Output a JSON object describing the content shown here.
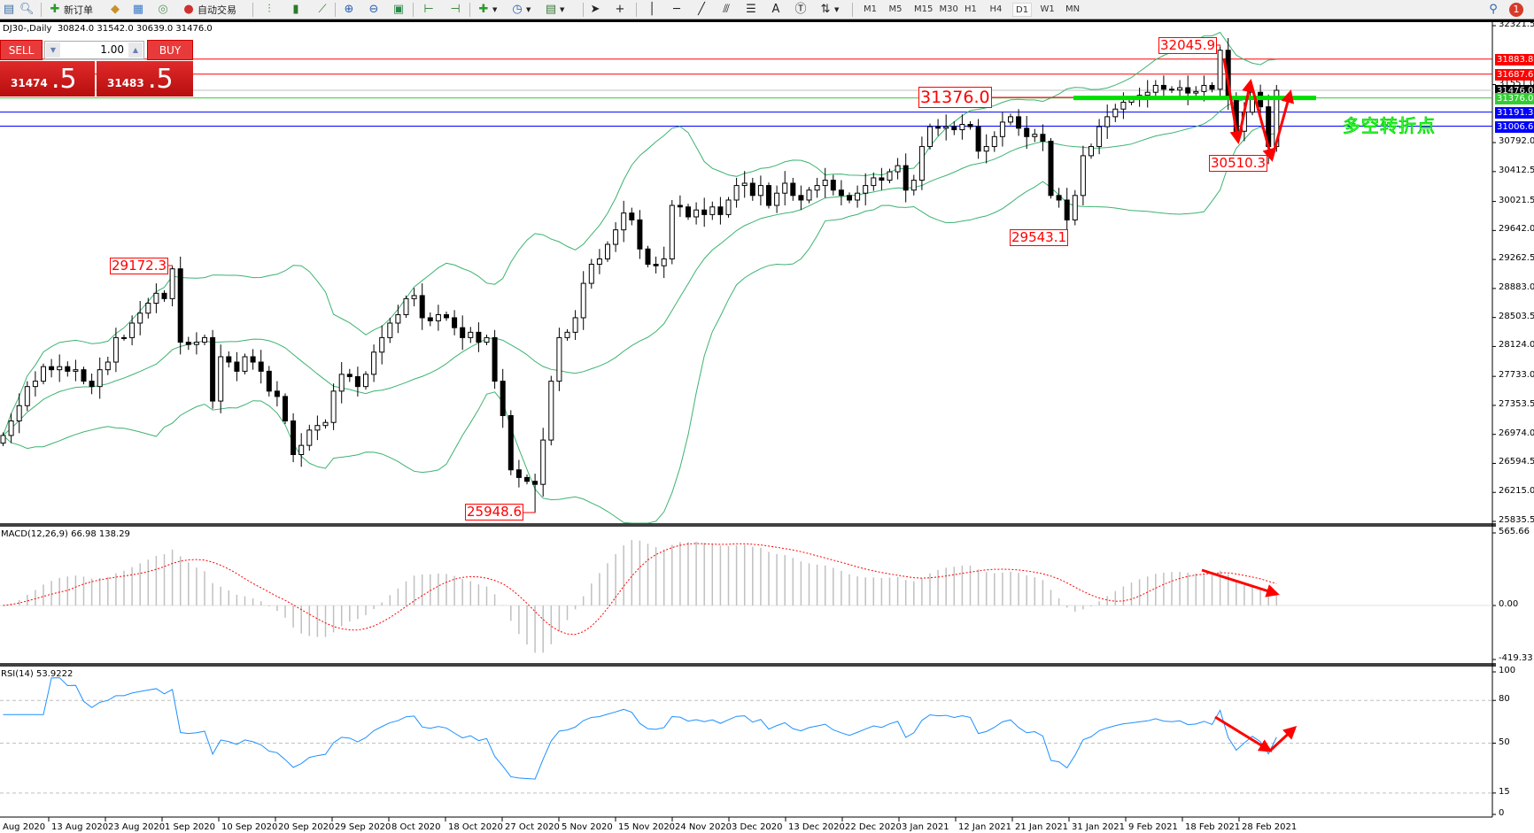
{
  "toolbar": {
    "new_order": "新订单",
    "auto_trading": "自动交易",
    "timeframes": [
      "M1",
      "M5",
      "M15",
      "M30",
      "H1",
      "H4",
      "D1",
      "W1",
      "MN"
    ],
    "active_timeframe": "D1",
    "notification_count": "1"
  },
  "chart": {
    "header": "DJ30-,Daily  30824.0 31542.0 30639.0 31476.0",
    "note_text": "多空转折点"
  },
  "trade_panel": {
    "sell": "SELL",
    "buy": "BUY",
    "lot": "1.00",
    "bid_main": "31474",
    "bid_frac": ".5",
    "ask_main": "31483",
    "ask_frac": ".5"
  },
  "price_axis": {
    "ticks": [
      "32321.5",
      "31551.0",
      "30792.0",
      "30412.5",
      "30021.5",
      "29642.0",
      "29262.5",
      "28883.0",
      "28503.5",
      "28124.0",
      "27733.0",
      "27353.5",
      "26974.0",
      "26594.5",
      "26215.0",
      "25835.5"
    ],
    "range": [
      25835.5,
      32321.5
    ]
  },
  "price_lines": [
    {
      "value": "31883.8",
      "color": "#ff0000"
    },
    {
      "value": "31687.6",
      "color": "#ff0000"
    },
    {
      "value": "31476.0",
      "color": "#000000",
      "line_color": "#c0c0c0"
    },
    {
      "value": "31376.0",
      "color": "#33cc33"
    },
    {
      "value": "31191.3",
      "color": "#0000ff"
    },
    {
      "value": "31006.6",
      "color": "#0000ff"
    }
  ],
  "annotations": [
    {
      "text": "29172.3",
      "bar": 21,
      "kind": "high"
    },
    {
      "text": "25948.6",
      "bar": 66,
      "kind": "low"
    },
    {
      "text": "31376.0",
      "kind": "level"
    },
    {
      "text": "29543.1",
      "bar": 132,
      "kind": "low"
    },
    {
      "text": "32045.9",
      "bar": 151,
      "kind": "high"
    },
    {
      "text": "30510.3",
      "bar": 157,
      "kind": "low"
    }
  ],
  "macd": {
    "label": "MACD(12,26,9) 66.98 138.29",
    "ticks": [
      "565.66",
      "0.00",
      "-419.33"
    ]
  },
  "rsi": {
    "label": "RSI(14) 53.9222",
    "ticks": [
      "100",
      "80",
      "50",
      "15",
      "0"
    ]
  },
  "date_labels": [
    "Aug 2020",
    "13 Aug 2020",
    "23 Aug 2020",
    "1 Sep 2020",
    "10 Sep 2020",
    "20 Sep 2020",
    "29 Sep 2020",
    "8 Oct 2020",
    "18 Oct 2020",
    "27 Oct 2020",
    "5 Nov 2020",
    "15 Nov 2020",
    "24 Nov 2020",
    "3 Dec 2020",
    "13 Dec 2020",
    "22 Dec 2020",
    "3 Jan 2021",
    "12 Jan 2021",
    "21 Jan 2021",
    "31 Jan 2021",
    "9 Feb 2021",
    "18 Feb 2021",
    "28 Feb 2021"
  ],
  "colors": {
    "bands": "#3cb371",
    "macd_hist": "#c0c0c0",
    "signal": "#ff0000",
    "rsi": "#1e90ff",
    "arrows": "#ff0000",
    "level_bar": "#00e000"
  },
  "chart_data": {
    "type": "line",
    "symbol": "DJ30-",
    "timeframe": "Daily",
    "indicators": [
      "Bollinger Bands",
      "MACD(12,26,9)",
      "RSI(14)"
    ],
    "close": [
      26960,
      27150,
      27350,
      27600,
      27670,
      27860,
      27820,
      27860,
      27800,
      27820,
      27670,
      27600,
      27820,
      27920,
      28240,
      28240,
      28430,
      28560,
      28690,
      28820,
      28750,
      29140,
      28180,
      28150,
      28180,
      28240,
      27410,
      27990,
      27920,
      27800,
      27990,
      27920,
      27800,
      27540,
      27470,
      27150,
      26710,
      26830,
      27030,
      27090,
      27130,
      27540,
      27760,
      27730,
      27600,
      27760,
      28050,
      28240,
      28430,
      28540,
      28750,
      28790,
      28500,
      28460,
      28540,
      28500,
      28370,
      28240,
      28310,
      28180,
      28240,
      27670,
      27220,
      26510,
      26410,
      26360,
      26320,
      26900,
      27670,
      28240,
      28310,
      28500,
      28950,
      29200,
      29270,
      29460,
      29650,
      29870,
      29780,
      29400,
      29200,
      29180,
      29270,
      29970,
      29950,
      29820,
      29910,
      29850,
      29950,
      29850,
      30040,
      30230,
      30260,
      30100,
      30230,
      29970,
      30130,
      30260,
      30100,
      30040,
      30170,
      30230,
      30300,
      30170,
      30100,
      30040,
      30130,
      30230,
      30330,
      30300,
      30410,
      30490,
      30170,
      30300,
      30740,
      31000,
      30980,
      31000,
      30960,
      31030,
      31000,
      30680,
      30740,
      30870,
      31060,
      31130,
      30980,
      30870,
      30900,
      30810,
      30100,
      30040,
      29780,
      30100,
      30620,
      30740,
      31000,
      31130,
      31230,
      31320,
      31360,
      31410,
      31450,
      31540,
      31490,
      31480,
      31510,
      31440,
      31460,
      31540,
      31490,
      32000,
      31380,
      30940,
      31190,
      31450,
      31260,
      30740,
      31476
    ]
  }
}
